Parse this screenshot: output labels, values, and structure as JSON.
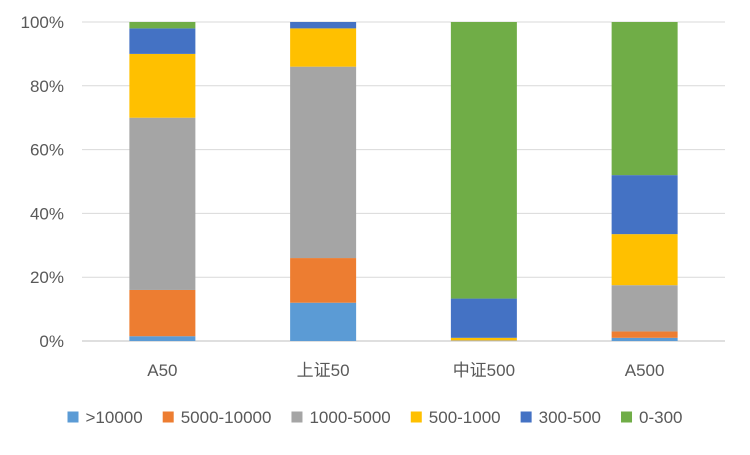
{
  "chart_data": {
    "type": "bar",
    "stacked": true,
    "normalized": true,
    "categories": [
      "A50",
      "上证50",
      "中证500",
      "A500"
    ],
    "series": [
      {
        "name": ">10000",
        "color": "#5B9BD5",
        "values": [
          1.5,
          12.0,
          0.0,
          1.0
        ]
      },
      {
        "name": "5000-10000",
        "color": "#ED7D31",
        "values": [
          14.5,
          14.0,
          0.0,
          2.0
        ]
      },
      {
        "name": "1000-5000",
        "color": "#A5A5A5",
        "values": [
          54.0,
          60.0,
          0.2,
          14.5
        ]
      },
      {
        "name": "500-1000",
        "color": "#FFC000",
        "values": [
          20.0,
          12.0,
          0.8,
          16.0
        ]
      },
      {
        "name": "300-500",
        "color": "#4472C4",
        "values": [
          8.0,
          2.0,
          12.3,
          18.5
        ]
      },
      {
        "name": "0-300",
        "color": "#70AD47",
        "values": [
          2.0,
          0.0,
          86.7,
          48.0
        ]
      }
    ],
    "yaxis": {
      "min": 0,
      "max": 100,
      "ticks": [
        "0%",
        "20%",
        "40%",
        "60%",
        "80%",
        "100%"
      ]
    },
    "grid": true,
    "legend_position": "bottom"
  }
}
